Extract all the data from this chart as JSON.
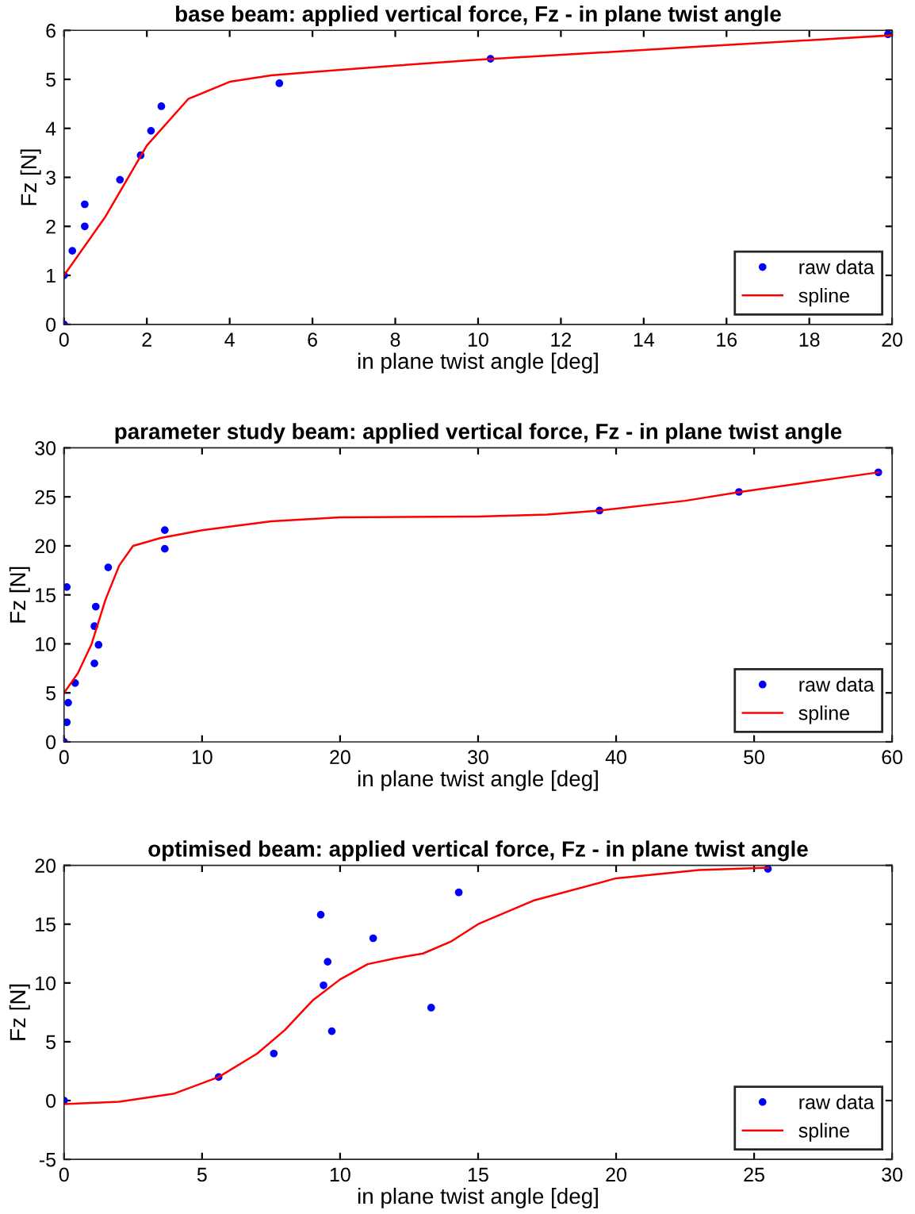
{
  "chart_data": [
    {
      "type": "scatter",
      "title": "base beam: applied vertical force, Fz - in plane twist angle",
      "xlabel": "in plane twist angle [deg]",
      "ylabel": "Fz [N]",
      "xlim": [
        0,
        20
      ],
      "ylim": [
        0,
        6
      ],
      "xticks": [
        0,
        2,
        4,
        6,
        8,
        10,
        12,
        14,
        16,
        18,
        20
      ],
      "yticks": [
        0,
        1,
        2,
        3,
        4,
        5,
        6
      ],
      "legend": "bottom right",
      "grid": false,
      "series": [
        {
          "name": "raw data",
          "marker": "circle",
          "color": "#0000ff",
          "x": [
            0,
            0,
            0.2,
            0.5,
            0.5,
            1.35,
            1.85,
            2.1,
            2.35,
            5.2,
            10.3,
            19.9
          ],
          "values": [
            0,
            1,
            1.5,
            2.45,
            2.0,
            2.95,
            3.45,
            3.95,
            4.45,
            4.92,
            5.42,
            5.92
          ]
        },
        {
          "name": "spline",
          "type": "line",
          "line_style": "solid",
          "color": "#ff0000",
          "x": [
            0,
            1,
            2,
            3,
            4,
            5,
            6,
            8,
            10,
            15,
            20
          ],
          "values": [
            1,
            2.2,
            3.65,
            4.6,
            4.95,
            5.08,
            5.15,
            5.28,
            5.4,
            5.65,
            5.9
          ]
        }
      ]
    },
    {
      "type": "scatter",
      "title": "parameter study beam: applied vertical force, Fz - in plane twist angle",
      "xlabel": "in plane twist angle [deg]",
      "ylabel": "Fz [N]",
      "xlim": [
        0,
        60
      ],
      "ylim": [
        0,
        30
      ],
      "xticks": [
        0,
        10,
        20,
        30,
        40,
        50,
        60
      ],
      "yticks": [
        0,
        5,
        10,
        15,
        20,
        25,
        30
      ],
      "legend": "bottom right",
      "grid": false,
      "series": [
        {
          "name": "raw data",
          "marker": "circle",
          "color": "#0000ff",
          "x": [
            0,
            0.2,
            0.3,
            0.8,
            0.2,
            2.2,
            2.2,
            2.3,
            2.5,
            3.2,
            7.3,
            7.3,
            38.8,
            48.9,
            59
          ],
          "values": [
            0,
            2,
            4,
            6,
            15.8,
            8,
            11.8,
            13.8,
            9.9,
            17.8,
            19.7,
            21.6,
            23.6,
            25.5,
            27.5
          ]
        },
        {
          "name": "spline",
          "type": "line",
          "line_style": "solid",
          "color": "#ff0000",
          "x": [
            0,
            1,
            2,
            3,
            4,
            5,
            7,
            10,
            15,
            20,
            30,
            35,
            38.8,
            45,
            49,
            59
          ],
          "values": [
            5,
            7,
            10,
            14.5,
            18,
            20,
            20.8,
            21.6,
            22.5,
            22.9,
            23,
            23.2,
            23.6,
            24.6,
            25.5,
            27.5
          ]
        }
      ]
    },
    {
      "type": "scatter",
      "title": "optimised beam: applied vertical force, Fz - in plane twist angle",
      "xlabel": "in plane twist angle [deg]",
      "ylabel": "Fz [N]",
      "xlim": [
        0,
        30
      ],
      "ylim": [
        -5,
        20
      ],
      "xticks": [
        0,
        5,
        10,
        15,
        20,
        25,
        30
      ],
      "yticks": [
        {
          "value": -5,
          "label": "-5"
        },
        0,
        5,
        10,
        15,
        20
      ],
      "legend": "bottom right",
      "grid": false,
      "series": [
        {
          "name": "raw data",
          "marker": "circle",
          "color": "#0000ff",
          "x": [
            0,
            5.6,
            7.6,
            9.3,
            9.4,
            9.55,
            9.7,
            11.2,
            13.3,
            14.3,
            25.5
          ],
          "values": [
            0,
            2,
            4,
            15.8,
            9.8,
            11.8,
            5.9,
            13.8,
            7.9,
            17.7,
            19.7
          ]
        },
        {
          "name": "spline",
          "type": "line",
          "line_style": "solid",
          "color": "#ff0000",
          "x": [
            0,
            2,
            4,
            5.6,
            7,
            8,
            9,
            10,
            11,
            12,
            13,
            14,
            15,
            17,
            20,
            23,
            25.5
          ],
          "values": [
            -0.3,
            -0.1,
            0.6,
            2,
            4,
            6,
            8.5,
            10.3,
            11.6,
            12.1,
            12.5,
            13.5,
            15,
            17,
            18.9,
            19.6,
            19.8
          ]
        }
      ]
    }
  ]
}
